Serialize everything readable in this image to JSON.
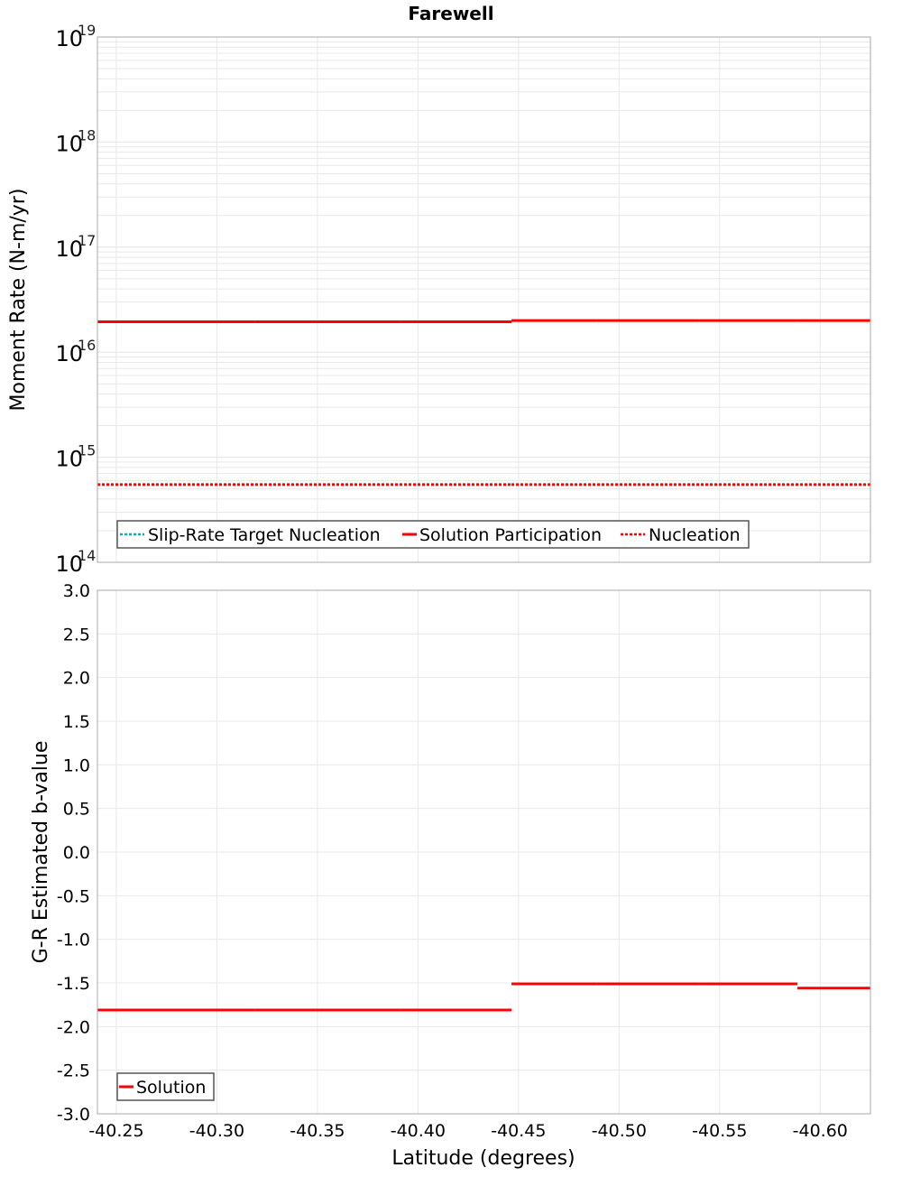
{
  "title": "Farewell",
  "chart_data": [
    {
      "type": "line",
      "title": "Farewell",
      "xlabel": "Latitude (degrees)",
      "ylabel": "Moment Rate (N-m/yr)",
      "yscale": "log",
      "ylim": [
        100000000000000.0,
        1e+19
      ],
      "xlim": [
        -40.2406,
        -40.625
      ],
      "y_ticks": [
        {
          "mantissa": "10",
          "exp": "14",
          "value": 100000000000000.0
        },
        {
          "mantissa": "10",
          "exp": "15",
          "value": 1000000000000000.0
        },
        {
          "mantissa": "10",
          "exp": "16",
          "value": 1e+16
        },
        {
          "mantissa": "10",
          "exp": "17",
          "value": 1e+17
        },
        {
          "mantissa": "10",
          "exp": "18",
          "value": 1e+18
        },
        {
          "mantissa": "10",
          "exp": "19",
          "value": 1e+19
        }
      ],
      "grid": true,
      "legend_position": "lower-left",
      "series": [
        {
          "name": "Slip-Rate Target Nucleation",
          "color": "#00b0c0",
          "style": "dotted",
          "segments": []
        },
        {
          "name": "Solution Participation",
          "color": "#ff0000",
          "style": "solid",
          "segments": [
            {
              "x0": -40.2406,
              "x1": -40.3187,
              "y": 1.95e+16
            },
            {
              "x0": -40.3187,
              "x1": -40.3909,
              "y": 1.95e+16
            },
            {
              "x0": -40.3909,
              "x1": -40.4465,
              "y": 1.95e+16
            },
            {
              "x0": -40.4465,
              "x1": -40.4887,
              "y": 2e+16
            },
            {
              "x0": -40.4887,
              "x1": -40.5398,
              "y": 2e+16
            },
            {
              "x0": -40.5398,
              "x1": -40.5887,
              "y": 2e+16
            },
            {
              "x0": -40.5887,
              "x1": -40.625,
              "y": 2e+16
            }
          ]
        },
        {
          "name": "Nucleation",
          "color": "#ff0000",
          "style": "dotted",
          "segments": [
            {
              "x0": -40.2406,
              "x1": -40.4465,
              "y": 550000000000000.0
            },
            {
              "x0": -40.4465,
              "x1": -40.625,
              "y": 550000000000000.0
            }
          ]
        }
      ]
    },
    {
      "type": "line",
      "title": "",
      "xlabel": "Latitude (degrees)",
      "ylabel": "G-R Estimated b-value",
      "ylim": [
        -3.0,
        3.0
      ],
      "xlim": [
        -40.2406,
        -40.625
      ],
      "y_ticks": [
        "3.0",
        "2.5",
        "2.0",
        "1.5",
        "1.0",
        "0.5",
        "0.0",
        "-0.5",
        "-1.0",
        "-1.5",
        "-2.0",
        "-2.5",
        "-3.0"
      ],
      "x_ticks": [
        "-40.25",
        "-40.30",
        "-40.35",
        "-40.40",
        "-40.45",
        "-40.50",
        "-40.55",
        "-40.60"
      ],
      "grid": true,
      "legend_position": "lower-left",
      "series": [
        {
          "name": "Solution",
          "color": "#ff0000",
          "style": "solid",
          "segments": [
            {
              "x0": -40.2406,
              "x1": -40.3187,
              "y": -1.81
            },
            {
              "x0": -40.3187,
              "x1": -40.3909,
              "y": -1.81
            },
            {
              "x0": -40.3909,
              "x1": -40.4465,
              "y": -1.81
            },
            {
              "x0": -40.4465,
              "x1": -40.4887,
              "y": -1.51
            },
            {
              "x0": -40.4887,
              "x1": -40.5398,
              "y": -1.51
            },
            {
              "x0": -40.5398,
              "x1": -40.5887,
              "y": -1.51
            },
            {
              "x0": -40.5887,
              "x1": -40.625,
              "y": -1.56
            }
          ]
        }
      ]
    }
  ],
  "x_ticks": [
    "-40.25",
    "-40.30",
    "-40.35",
    "-40.40",
    "-40.45",
    "-40.50",
    "-40.55",
    "-40.60"
  ],
  "x_tick_values": [
    -40.25,
    -40.3,
    -40.35,
    -40.4,
    -40.45,
    -40.5,
    -40.55,
    -40.6
  ],
  "xlabel": "Latitude (degrees)",
  "top_legend": [
    {
      "label": "Slip-Rate Target Nucleation",
      "color": "#00b0c0",
      "style": "dotted"
    },
    {
      "label": "Solution Participation",
      "color": "#ff0000",
      "style": "solid"
    },
    {
      "label": "Nucleation",
      "color": "#ff0000",
      "style": "dotted"
    }
  ],
  "bottom_legend": [
    {
      "label": "Solution",
      "color": "#ff0000",
      "style": "solid"
    }
  ],
  "colors": {
    "grid": "#e8e8e8",
    "frame": "#aaaaaa",
    "series_red": "#ff0000",
    "series_cyan": "#00b0c0"
  }
}
